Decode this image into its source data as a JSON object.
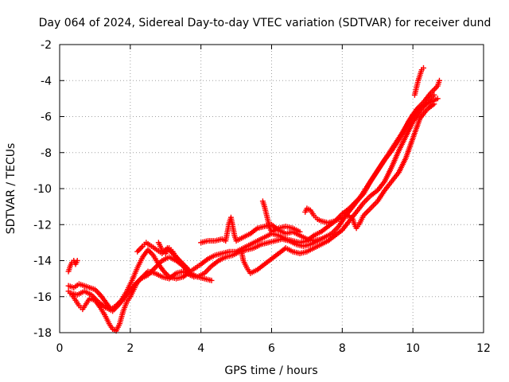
{
  "chart_data": {
    "type": "scatter",
    "title": "Day 064 of 2024, Sidereal Day-to-day VTEC variation (SDTVAR) for receiver dund",
    "xlabel": "GPS time / hours",
    "ylabel": "SDTVAR / TECUs",
    "xlim": [
      0,
      12
    ],
    "ylim": [
      -18,
      -2
    ],
    "xticks": [
      0,
      2,
      4,
      6,
      8,
      10,
      12
    ],
    "yticks": [
      -18,
      -16,
      -14,
      -12,
      -10,
      -8,
      -6,
      -4,
      -2
    ],
    "grid": true,
    "marker": "+",
    "color": "#ff0000",
    "series": [
      {
        "points": [
          [
            0.25,
            -14.6
          ],
          [
            0.3,
            -14.3
          ],
          [
            0.35,
            -14.1
          ],
          [
            0.4,
            -14.0
          ],
          [
            0.45,
            -14.2
          ],
          [
            0.5,
            -14.0
          ]
        ]
      },
      {
        "points": [
          [
            0.25,
            -15.7
          ],
          [
            0.35,
            -15.9
          ],
          [
            0.45,
            -16.2
          ],
          [
            0.55,
            -16.5
          ],
          [
            0.65,
            -16.7
          ],
          [
            0.75,
            -16.4
          ],
          [
            0.85,
            -16.1
          ],
          [
            1.0,
            -16.2
          ],
          [
            1.15,
            -16.6
          ],
          [
            1.3,
            -17.1
          ],
          [
            1.4,
            -17.5
          ],
          [
            1.5,
            -17.8
          ],
          [
            1.6,
            -17.9
          ],
          [
            1.7,
            -17.5
          ],
          [
            1.8,
            -16.8
          ],
          [
            1.9,
            -16.3
          ],
          [
            2.0,
            -16.0
          ],
          [
            2.1,
            -15.6
          ],
          [
            2.2,
            -15.2
          ],
          [
            2.35,
            -14.9
          ],
          [
            2.5,
            -14.6
          ],
          [
            2.7,
            -14.7
          ],
          [
            2.9,
            -14.9
          ],
          [
            3.1,
            -15.0
          ],
          [
            3.3,
            -14.7
          ],
          [
            3.5,
            -14.6
          ],
          [
            3.7,
            -14.8
          ],
          [
            3.9,
            -14.9
          ],
          [
            4.1,
            -15.0
          ],
          [
            4.3,
            -15.1
          ]
        ]
      },
      {
        "points": [
          [
            0.25,
            -15.4
          ],
          [
            0.4,
            -15.5
          ],
          [
            0.55,
            -15.3
          ],
          [
            0.7,
            -15.4
          ],
          [
            0.85,
            -15.5
          ],
          [
            1.0,
            -15.6
          ],
          [
            1.15,
            -15.9
          ],
          [
            1.3,
            -16.3
          ],
          [
            1.45,
            -16.7
          ],
          [
            1.6,
            -16.5
          ],
          [
            1.75,
            -16.2
          ],
          [
            1.9,
            -15.7
          ],
          [
            2.05,
            -15.1
          ],
          [
            2.2,
            -14.4
          ],
          [
            2.35,
            -13.8
          ],
          [
            2.5,
            -13.4
          ],
          [
            2.65,
            -13.7
          ],
          [
            2.8,
            -14.2
          ],
          [
            2.95,
            -14.6
          ],
          [
            3.1,
            -14.9
          ],
          [
            3.3,
            -15.0
          ],
          [
            3.5,
            -14.9
          ],
          [
            3.7,
            -14.6
          ],
          [
            3.85,
            -14.4
          ],
          [
            4.0,
            -14.2
          ],
          [
            4.2,
            -13.9
          ],
          [
            4.4,
            -13.7
          ],
          [
            4.6,
            -13.6
          ],
          [
            4.8,
            -13.5
          ],
          [
            5.0,
            -13.5
          ],
          [
            5.2,
            -13.3
          ],
          [
            5.4,
            -13.1
          ],
          [
            5.6,
            -12.9
          ],
          [
            5.8,
            -12.7
          ],
          [
            6.0,
            -12.5
          ],
          [
            6.2,
            -12.6
          ],
          [
            6.4,
            -12.8
          ],
          [
            6.6,
            -12.9
          ],
          [
            6.8,
            -13.0
          ],
          [
            7.0,
            -12.9
          ],
          [
            7.2,
            -12.6
          ],
          [
            7.4,
            -12.4
          ],
          [
            7.6,
            -12.1
          ],
          [
            7.8,
            -11.8
          ],
          [
            8.0,
            -11.4
          ],
          [
            8.2,
            -11.1
          ],
          [
            8.4,
            -10.7
          ],
          [
            8.6,
            -10.3
          ],
          [
            8.8,
            -9.6
          ],
          [
            9.0,
            -9.0
          ],
          [
            9.2,
            -8.4
          ],
          [
            9.4,
            -7.9
          ],
          [
            9.6,
            -7.3
          ],
          [
            9.8,
            -6.6
          ],
          [
            10.0,
            -5.9
          ],
          [
            10.2,
            -5.5
          ],
          [
            10.4,
            -5.3
          ],
          [
            10.6,
            -5.1
          ],
          [
            10.7,
            -5.0
          ]
        ]
      },
      {
        "points": [
          [
            0.3,
            -15.8
          ],
          [
            0.5,
            -15.9
          ],
          [
            0.7,
            -15.7
          ],
          [
            0.9,
            -15.9
          ],
          [
            1.1,
            -16.3
          ],
          [
            1.3,
            -16.6
          ],
          [
            1.5,
            -16.8
          ],
          [
            1.7,
            -16.4
          ],
          [
            1.9,
            -15.9
          ],
          [
            2.1,
            -15.4
          ],
          [
            2.3,
            -15.0
          ],
          [
            2.5,
            -14.8
          ],
          [
            2.7,
            -14.4
          ],
          [
            2.9,
            -14.0
          ],
          [
            3.1,
            -13.8
          ],
          [
            3.3,
            -14.0
          ],
          [
            3.5,
            -14.3
          ],
          [
            3.7,
            -14.7
          ],
          [
            3.9,
            -14.9
          ],
          [
            4.1,
            -14.7
          ],
          [
            4.3,
            -14.3
          ],
          [
            4.5,
            -14.0
          ],
          [
            4.7,
            -13.8
          ],
          [
            4.9,
            -13.7
          ],
          [
            5.1,
            -13.5
          ],
          [
            5.3,
            -13.4
          ],
          [
            5.5,
            -13.3
          ],
          [
            5.7,
            -13.1
          ],
          [
            5.9,
            -13.0
          ],
          [
            6.1,
            -12.9
          ],
          [
            6.3,
            -12.8
          ],
          [
            6.5,
            -12.9
          ],
          [
            6.7,
            -13.1
          ],
          [
            6.9,
            -13.2
          ],
          [
            7.1,
            -13.1
          ],
          [
            7.3,
            -12.9
          ],
          [
            7.5,
            -12.7
          ],
          [
            7.7,
            -12.5
          ],
          [
            7.9,
            -12.1
          ],
          [
            8.1,
            -11.5
          ],
          [
            8.3,
            -11.0
          ],
          [
            8.5,
            -10.5
          ],
          [
            8.7,
            -9.9
          ],
          [
            8.9,
            -9.3
          ],
          [
            9.1,
            -8.7
          ],
          [
            9.3,
            -8.1
          ],
          [
            9.5,
            -7.5
          ],
          [
            9.7,
            -6.9
          ],
          [
            9.9,
            -6.2
          ],
          [
            10.1,
            -5.6
          ],
          [
            10.3,
            -5.2
          ],
          [
            10.5,
            -4.7
          ],
          [
            10.7,
            -4.3
          ],
          [
            10.75,
            -4.0
          ]
        ]
      },
      {
        "points": [
          [
            2.2,
            -13.5
          ],
          [
            2.35,
            -13.2
          ],
          [
            2.45,
            -13.0
          ],
          [
            2.6,
            -13.2
          ],
          [
            2.75,
            -13.4
          ],
          [
            2.9,
            -13.6
          ],
          [
            3.05,
            -13.3
          ],
          [
            3.2,
            -13.6
          ],
          [
            3.35,
            -13.9
          ],
          [
            3.5,
            -14.2
          ],
          [
            3.65,
            -14.5
          ]
        ]
      },
      {
        "points": [
          [
            2.8,
            -13.0
          ],
          [
            2.9,
            -13.4
          ],
          [
            3.0,
            -13.6
          ],
          [
            3.1,
            -13.3
          ],
          [
            3.2,
            -13.5
          ],
          [
            3.3,
            -13.8
          ],
          [
            3.4,
            -14.1
          ],
          [
            3.5,
            -14.3
          ],
          [
            3.6,
            -14.6
          ],
          [
            3.7,
            -14.8
          ],
          [
            3.8,
            -14.9
          ]
        ]
      },
      {
        "points": [
          [
            4.0,
            -13.0
          ],
          [
            4.2,
            -12.9
          ],
          [
            4.4,
            -12.9
          ],
          [
            4.6,
            -12.8
          ],
          [
            4.7,
            -12.9
          ],
          [
            4.75,
            -12.4
          ],
          [
            4.8,
            -11.9
          ],
          [
            4.85,
            -11.6
          ],
          [
            4.9,
            -12.1
          ],
          [
            4.95,
            -12.6
          ],
          [
            5.0,
            -12.9
          ],
          [
            5.2,
            -12.7
          ],
          [
            5.4,
            -12.5
          ],
          [
            5.6,
            -12.2
          ],
          [
            5.8,
            -12.1
          ],
          [
            6.0,
            -12.0
          ],
          [
            6.2,
            -12.3
          ],
          [
            6.4,
            -12.5
          ],
          [
            6.6,
            -12.4
          ],
          [
            6.8,
            -12.6
          ],
          [
            7.0,
            -12.8
          ],
          [
            7.2,
            -12.9
          ],
          [
            7.4,
            -12.8
          ]
        ]
      },
      {
        "points": [
          [
            5.15,
            -13.5
          ],
          [
            5.2,
            -14.0
          ],
          [
            5.3,
            -14.4
          ],
          [
            5.4,
            -14.7
          ],
          [
            5.6,
            -14.5
          ],
          [
            5.8,
            -14.2
          ],
          [
            6.0,
            -13.9
          ],
          [
            6.2,
            -13.6
          ],
          [
            6.4,
            -13.3
          ],
          [
            6.6,
            -13.5
          ],
          [
            6.8,
            -13.6
          ],
          [
            7.0,
            -13.5
          ],
          [
            7.2,
            -13.3
          ],
          [
            7.4,
            -13.1
          ],
          [
            7.6,
            -12.9
          ],
          [
            7.8,
            -12.6
          ],
          [
            8.0,
            -12.3
          ],
          [
            8.2,
            -11.8
          ],
          [
            8.4,
            -11.3
          ],
          [
            8.6,
            -10.8
          ],
          [
            8.8,
            -10.4
          ],
          [
            9.0,
            -10.1
          ],
          [
            9.2,
            -9.6
          ],
          [
            9.4,
            -8.8
          ],
          [
            9.6,
            -7.9
          ],
          [
            9.8,
            -7.1
          ],
          [
            10.0,
            -6.3
          ],
          [
            10.2,
            -5.7
          ],
          [
            10.4,
            -5.2
          ],
          [
            10.6,
            -4.8
          ]
        ]
      },
      {
        "points": [
          [
            5.75,
            -10.7
          ],
          [
            5.8,
            -11.0
          ],
          [
            5.85,
            -11.4
          ],
          [
            5.9,
            -11.8
          ],
          [
            5.95,
            -12.2
          ],
          [
            6.0,
            -12.4
          ],
          [
            6.2,
            -12.2
          ],
          [
            6.4,
            -12.1
          ],
          [
            6.6,
            -12.2
          ],
          [
            6.8,
            -12.4
          ]
        ]
      },
      {
        "points": [
          [
            6.95,
            -11.3
          ],
          [
            7.0,
            -11.1
          ],
          [
            7.1,
            -11.2
          ],
          [
            7.2,
            -11.5
          ],
          [
            7.3,
            -11.7
          ],
          [
            7.4,
            -11.8
          ],
          [
            7.6,
            -11.9
          ],
          [
            7.8,
            -11.8
          ],
          [
            8.0,
            -11.6
          ],
          [
            8.2,
            -11.5
          ],
          [
            8.3,
            -11.7
          ],
          [
            8.35,
            -12.0
          ],
          [
            8.4,
            -12.2
          ],
          [
            8.5,
            -11.9
          ],
          [
            8.6,
            -11.5
          ],
          [
            8.8,
            -11.1
          ],
          [
            9.0,
            -10.7
          ],
          [
            9.2,
            -10.1
          ],
          [
            9.4,
            -9.6
          ],
          [
            9.6,
            -9.1
          ],
          [
            9.8,
            -8.3
          ],
          [
            10.0,
            -7.2
          ],
          [
            10.2,
            -6.1
          ],
          [
            10.4,
            -5.6
          ],
          [
            10.6,
            -5.3
          ]
        ]
      },
      {
        "points": [
          [
            10.05,
            -4.8
          ],
          [
            10.1,
            -4.4
          ],
          [
            10.15,
            -4.0
          ],
          [
            10.2,
            -3.7
          ],
          [
            10.25,
            -3.4
          ],
          [
            10.3,
            -3.3
          ]
        ]
      }
    ]
  }
}
